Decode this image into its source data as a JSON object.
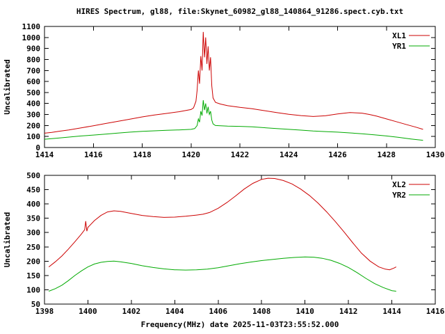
{
  "title": "HIRES Spectrum, gl88, file:Skynet_60982_gl88_140864_91286.spect.cyb.txt",
  "xlabel": "Frequency(MHz) date 2025-11-03T23:55:52.000",
  "colors": {
    "frame": "#000000",
    "background": "#ffffff",
    "series_red": "#cc0000",
    "series_green": "#00aa00"
  },
  "chart_data": [
    {
      "type": "line",
      "ylabel": "Uncalibrated",
      "xlim": [
        1414,
        1430
      ],
      "ylim": [
        0,
        1100
      ],
      "xticks": [
        1414,
        1416,
        1418,
        1420,
        1422,
        1424,
        1426,
        1428,
        1430
      ],
      "yticks": [
        0,
        100,
        200,
        300,
        400,
        500,
        600,
        700,
        800,
        900,
        1000,
        1100
      ],
      "grid": false,
      "legend_position": "top-right",
      "series": [
        {
          "name": "XL1",
          "color": "#cc0000",
          "points": [
            [
              1414.0,
              130
            ],
            [
              1414.3,
              138
            ],
            [
              1414.6,
              148
            ],
            [
              1415.0,
              160
            ],
            [
              1415.5,
              178
            ],
            [
              1416.0,
              198
            ],
            [
              1416.5,
              218
            ],
            [
              1417.0,
              238
            ],
            [
              1417.5,
              258
            ],
            [
              1418.0,
              278
            ],
            [
              1418.5,
              295
            ],
            [
              1419.0,
              310
            ],
            [
              1419.5,
              325
            ],
            [
              1420.0,
              345
            ],
            [
              1420.1,
              360
            ],
            [
              1420.2,
              420
            ],
            [
              1420.25,
              520
            ],
            [
              1420.3,
              700
            ],
            [
              1420.35,
              580
            ],
            [
              1420.4,
              830
            ],
            [
              1420.45,
              700
            ],
            [
              1420.5,
              1050
            ],
            [
              1420.55,
              820
            ],
            [
              1420.6,
              1000
            ],
            [
              1420.65,
              760
            ],
            [
              1420.7,
              920
            ],
            [
              1420.75,
              700
            ],
            [
              1420.8,
              820
            ],
            [
              1420.85,
              560
            ],
            [
              1420.9,
              450
            ],
            [
              1421.0,
              410
            ],
            [
              1421.2,
              395
            ],
            [
              1421.5,
              380
            ],
            [
              1422.0,
              365
            ],
            [
              1422.5,
              352
            ],
            [
              1423.0,
              335
            ],
            [
              1423.5,
              318
            ],
            [
              1424.0,
              302
            ],
            [
              1424.5,
              290
            ],
            [
              1425.0,
              282
            ],
            [
              1425.5,
              288
            ],
            [
              1426.0,
              305
            ],
            [
              1426.5,
              318
            ],
            [
              1427.0,
              312
            ],
            [
              1427.3,
              300
            ],
            [
              1427.6,
              285
            ],
            [
              1428.0,
              260
            ],
            [
              1428.4,
              235
            ],
            [
              1428.8,
              210
            ],
            [
              1429.2,
              185
            ],
            [
              1429.5,
              165
            ]
          ]
        },
        {
          "name": "YR1",
          "color": "#00aa00",
          "points": [
            [
              1414.0,
              75
            ],
            [
              1414.5,
              85
            ],
            [
              1415.0,
              95
            ],
            [
              1415.5,
              105
            ],
            [
              1416.0,
              113
            ],
            [
              1416.5,
              122
            ],
            [
              1417.0,
              131
            ],
            [
              1417.5,
              140
            ],
            [
              1418.0,
              147
            ],
            [
              1418.5,
              152
            ],
            [
              1419.0,
              157
            ],
            [
              1419.5,
              160
            ],
            [
              1420.0,
              165
            ],
            [
              1420.15,
              172
            ],
            [
              1420.25,
              200
            ],
            [
              1420.3,
              260
            ],
            [
              1420.35,
              230
            ],
            [
              1420.4,
              330
            ],
            [
              1420.45,
              290
            ],
            [
              1420.5,
              430
            ],
            [
              1420.55,
              340
            ],
            [
              1420.6,
              400
            ],
            [
              1420.65,
              310
            ],
            [
              1420.7,
              370
            ],
            [
              1420.75,
              300
            ],
            [
              1420.8,
              330
            ],
            [
              1420.85,
              250
            ],
            [
              1420.9,
              215
            ],
            [
              1421.0,
              200
            ],
            [
              1421.5,
              195
            ],
            [
              1422.0,
              192
            ],
            [
              1422.5,
              188
            ],
            [
              1423.0,
              180
            ],
            [
              1423.5,
              172
            ],
            [
              1424.0,
              165
            ],
            [
              1424.5,
              158
            ],
            [
              1425.0,
              150
            ],
            [
              1425.5,
              145
            ],
            [
              1426.0,
              140
            ],
            [
              1426.5,
              133
            ],
            [
              1427.0,
              125
            ],
            [
              1427.5,
              115
            ],
            [
              1428.0,
              105
            ],
            [
              1428.5,
              92
            ],
            [
              1429.0,
              78
            ],
            [
              1429.5,
              66
            ]
          ]
        }
      ]
    },
    {
      "type": "line",
      "ylabel": "Uncalibrated",
      "xlim": [
        1398,
        1416
      ],
      "ylim": [
        50,
        500
      ],
      "xticks": [
        1398,
        1400,
        1402,
        1404,
        1406,
        1408,
        1410,
        1412,
        1414,
        1416
      ],
      "yticks": [
        50,
        100,
        150,
        200,
        250,
        300,
        350,
        400,
        450,
        500
      ],
      "grid": false,
      "legend_position": "top-right",
      "series": [
        {
          "name": "XL2",
          "color": "#cc0000",
          "points": [
            [
              1398.2,
              180
            ],
            [
              1398.5,
              198
            ],
            [
              1398.8,
              218
            ],
            [
              1399.1,
              242
            ],
            [
              1399.4,
              268
            ],
            [
              1399.7,
              295
            ],
            [
              1399.85,
              310
            ],
            [
              1399.9,
              340
            ],
            [
              1399.95,
              305
            ],
            [
              1400.0,
              318
            ],
            [
              1400.3,
              342
            ],
            [
              1400.6,
              360
            ],
            [
              1400.9,
              372
            ],
            [
              1401.2,
              376
            ],
            [
              1401.5,
              374
            ],
            [
              1402.0,
              367
            ],
            [
              1402.5,
              360
            ],
            [
              1403.0,
              356
            ],
            [
              1403.5,
              353
            ],
            [
              1404.0,
              354
            ],
            [
              1404.5,
              357
            ],
            [
              1405.0,
              361
            ],
            [
              1405.3,
              364
            ],
            [
              1405.6,
              370
            ],
            [
              1406.0,
              385
            ],
            [
              1406.4,
              405
            ],
            [
              1406.8,
              428
            ],
            [
              1407.2,
              452
            ],
            [
              1407.6,
              472
            ],
            [
              1408.0,
              486
            ],
            [
              1408.3,
              490
            ],
            [
              1408.6,
              489
            ],
            [
              1409.0,
              482
            ],
            [
              1409.4,
              470
            ],
            [
              1409.8,
              452
            ],
            [
              1410.2,
              430
            ],
            [
              1410.6,
              403
            ],
            [
              1411.0,
              372
            ],
            [
              1411.4,
              338
            ],
            [
              1411.8,
              302
            ],
            [
              1412.2,
              264
            ],
            [
              1412.6,
              228
            ],
            [
              1413.0,
              200
            ],
            [
              1413.4,
              180
            ],
            [
              1413.7,
              172
            ],
            [
              1413.9,
              170
            ],
            [
              1414.1,
              176
            ],
            [
              1414.2,
              180
            ]
          ]
        },
        {
          "name": "YR2",
          "color": "#00aa00",
          "points": [
            [
              1398.2,
              95
            ],
            [
              1398.5,
              104
            ],
            [
              1398.8,
              116
            ],
            [
              1399.1,
              132
            ],
            [
              1399.4,
              150
            ],
            [
              1399.7,
              166
            ],
            [
              1400.0,
              180
            ],
            [
              1400.3,
              190
            ],
            [
              1400.6,
              196
            ],
            [
              1400.9,
              199
            ],
            [
              1401.2,
              200
            ],
            [
              1401.5,
              198
            ],
            [
              1402.0,
              192
            ],
            [
              1402.5,
              184
            ],
            [
              1403.0,
              178
            ],
            [
              1403.5,
              173
            ],
            [
              1404.0,
              170
            ],
            [
              1404.5,
              169
            ],
            [
              1405.0,
              170
            ],
            [
              1405.5,
              172
            ],
            [
              1406.0,
              177
            ],
            [
              1406.5,
              184
            ],
            [
              1407.0,
              191
            ],
            [
              1407.5,
              197
            ],
            [
              1408.0,
              202
            ],
            [
              1408.5,
              206
            ],
            [
              1409.0,
              210
            ],
            [
              1409.5,
              213
            ],
            [
              1410.0,
              215
            ],
            [
              1410.4,
              214
            ],
            [
              1410.8,
              210
            ],
            [
              1411.2,
              203
            ],
            [
              1411.6,
              192
            ],
            [
              1412.0,
              178
            ],
            [
              1412.4,
              160
            ],
            [
              1412.8,
              140
            ],
            [
              1413.2,
              122
            ],
            [
              1413.6,
              108
            ],
            [
              1414.0,
              97
            ],
            [
              1414.2,
              95
            ]
          ]
        }
      ]
    }
  ]
}
